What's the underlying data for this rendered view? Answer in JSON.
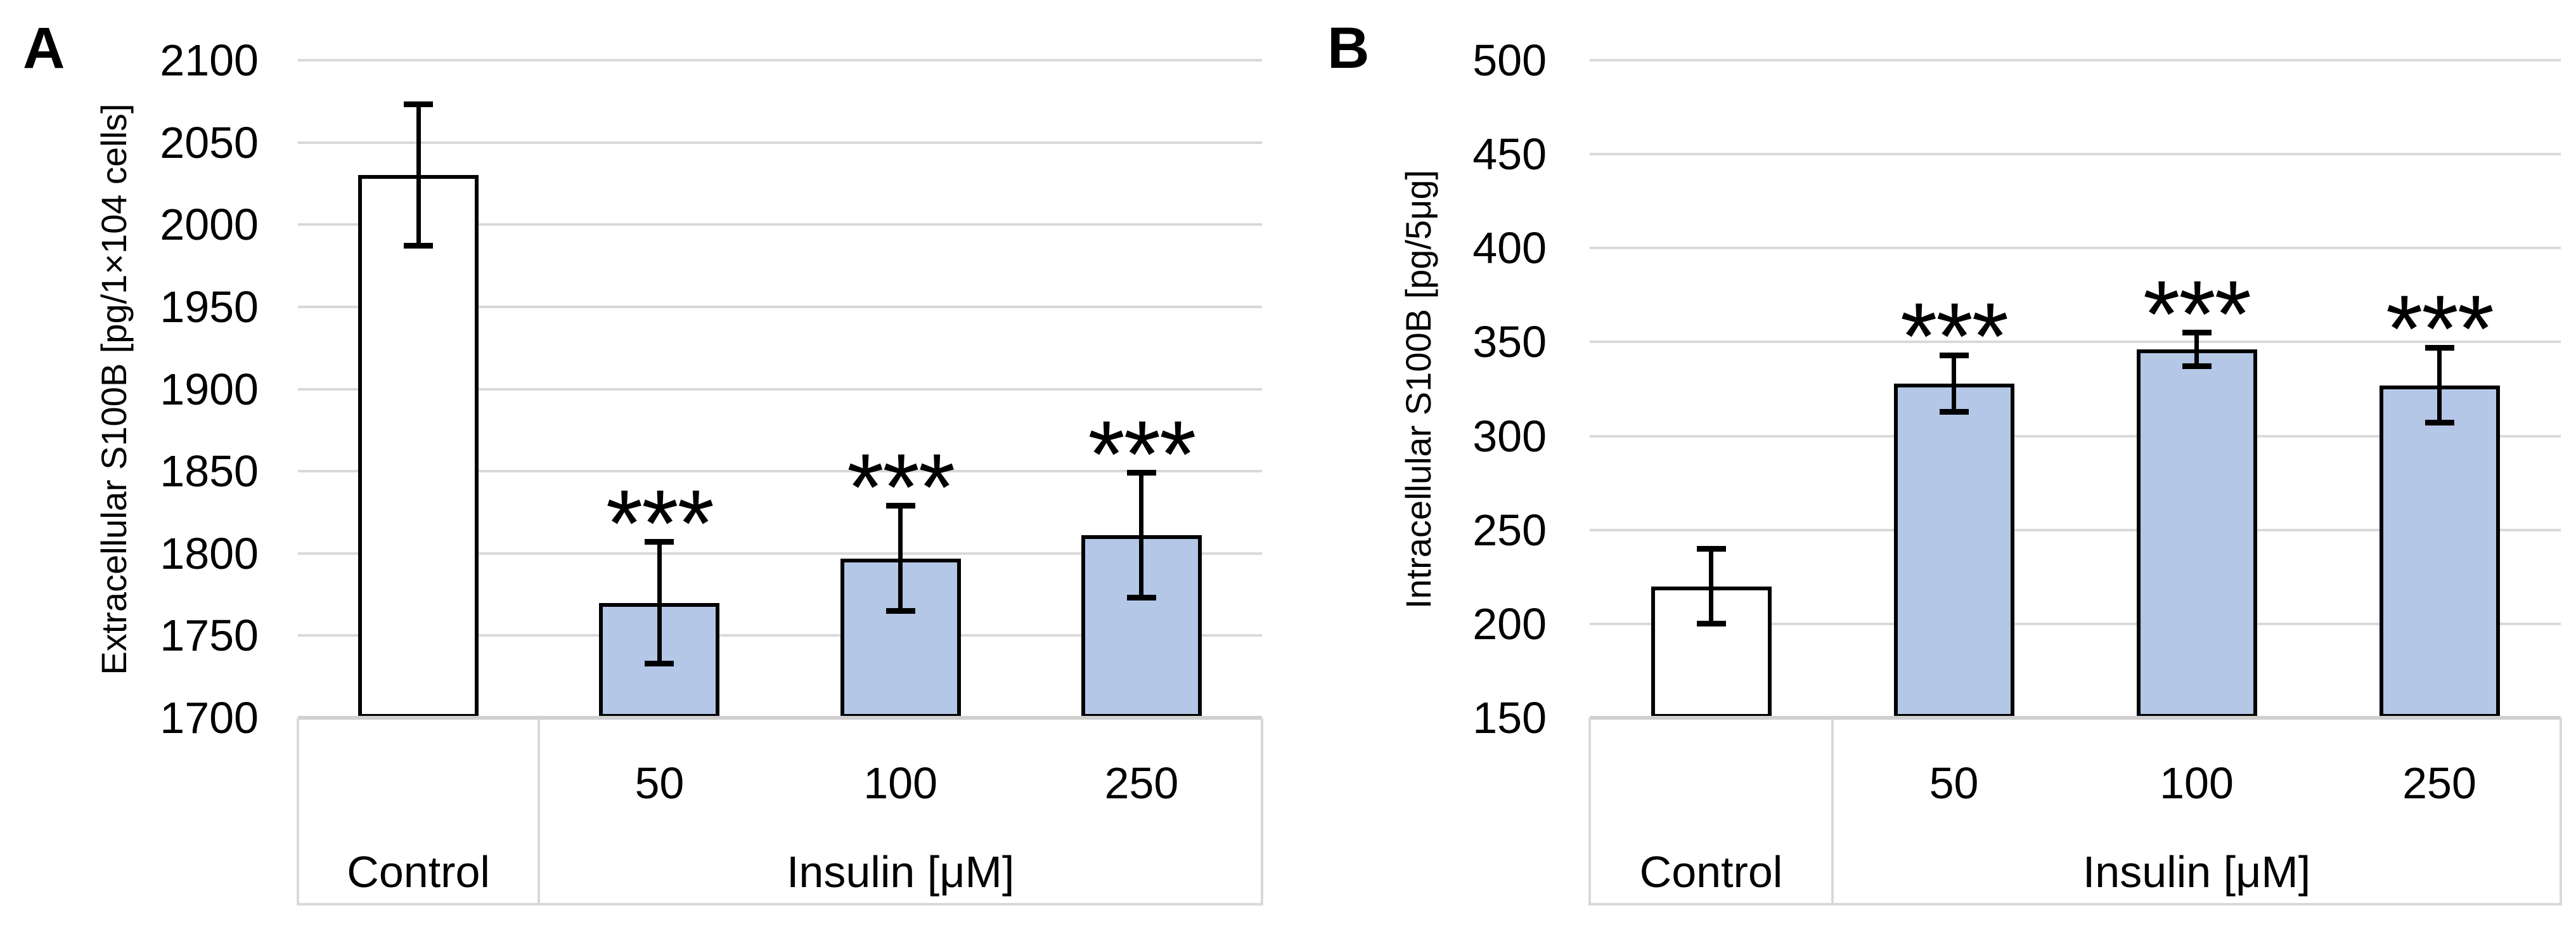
{
  "figure": {
    "description": "Two-panel bar chart figure of S100B levels under insulin treatment",
    "background": "#ffffff"
  },
  "colors": {
    "bar_fill_control": "#FFFFFF",
    "bar_fill_insulin": "#B4C7E7",
    "bar_border": "#000000",
    "gridline": "#D9D9D9",
    "baseline": "#D0D0D0",
    "table_border": "#D9D9D9",
    "error_bar": "#000000",
    "text": "#000000"
  },
  "chart_data": [
    {
      "type": "bar",
      "panel_label": "A",
      "title": "",
      "ylabel": "Extracellular S100B [pg/1×104 cells]",
      "xlabel": "",
      "ylim": [
        1700,
        2100
      ],
      "ytick_step": 50,
      "yticks": [
        "2100",
        "2050",
        "2000",
        "1950",
        "1900",
        "1850",
        "1800",
        "1750",
        "1700"
      ],
      "grid": true,
      "legend_position": "none",
      "categories": [
        "Control",
        "50",
        "100",
        "250"
      ],
      "category_axis": {
        "control_label": "Control",
        "group_label": "Insulin [μM]",
        "group_tick_labels": [
          "50",
          "100",
          "250"
        ]
      },
      "values": [
        2030,
        1770,
        1797,
        1811
      ],
      "error_bars": [
        43,
        37,
        32,
        38
      ],
      "significance": [
        "",
        "***",
        "***",
        "***"
      ],
      "bar_fills": [
        "control",
        "insulin",
        "insulin",
        "insulin"
      ]
    },
    {
      "type": "bar",
      "panel_label": "B",
      "title": "",
      "ylabel": "Intracellular S100B [pg/5μg]",
      "xlabel": "",
      "ylim": [
        150,
        500
      ],
      "ytick_step": 50,
      "yticks": [
        "500",
        "450",
        "400",
        "350",
        "300",
        "250",
        "200",
        "150"
      ],
      "grid": true,
      "legend_position": "none",
      "categories": [
        "Control",
        "50",
        "100",
        "250"
      ],
      "category_axis": {
        "control_label": "Control",
        "group_label": "Insulin [μM]",
        "group_tick_labels": [
          "50",
          "100",
          "250"
        ]
      },
      "values": [
        220,
        328,
        346,
        327
      ],
      "error_bars": [
        20,
        15,
        9,
        20
      ],
      "significance": [
        "",
        "***",
        "***",
        "***"
      ],
      "bar_fills": [
        "control",
        "insulin",
        "insulin",
        "insulin"
      ]
    }
  ]
}
